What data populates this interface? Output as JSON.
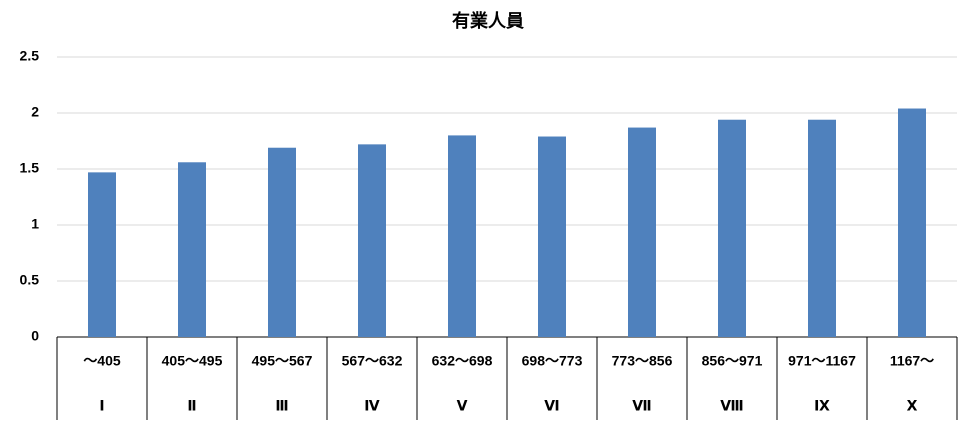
{
  "chart_data": {
    "type": "bar",
    "title": "有業人員",
    "categories": [
      "～405",
      "405～495",
      "495～567",
      "567～632",
      "632～698",
      "698～773",
      "773～856",
      "856～971",
      "971～1167",
      "1167～"
    ],
    "category_groups": [
      "Ⅰ",
      "Ⅱ",
      "Ⅲ",
      "Ⅳ",
      "Ⅴ",
      "Ⅵ",
      "Ⅶ",
      "Ⅷ",
      "Ⅸ",
      "Ⅹ"
    ],
    "values": [
      1.47,
      1.56,
      1.69,
      1.72,
      1.8,
      1.79,
      1.87,
      1.94,
      1.94,
      2.04
    ],
    "color": "#4f81bd",
    "ylim": [
      0,
      2.5
    ],
    "yticks": [
      0,
      0.5,
      1,
      1.5,
      2,
      2.5
    ],
    "grid": true
  }
}
